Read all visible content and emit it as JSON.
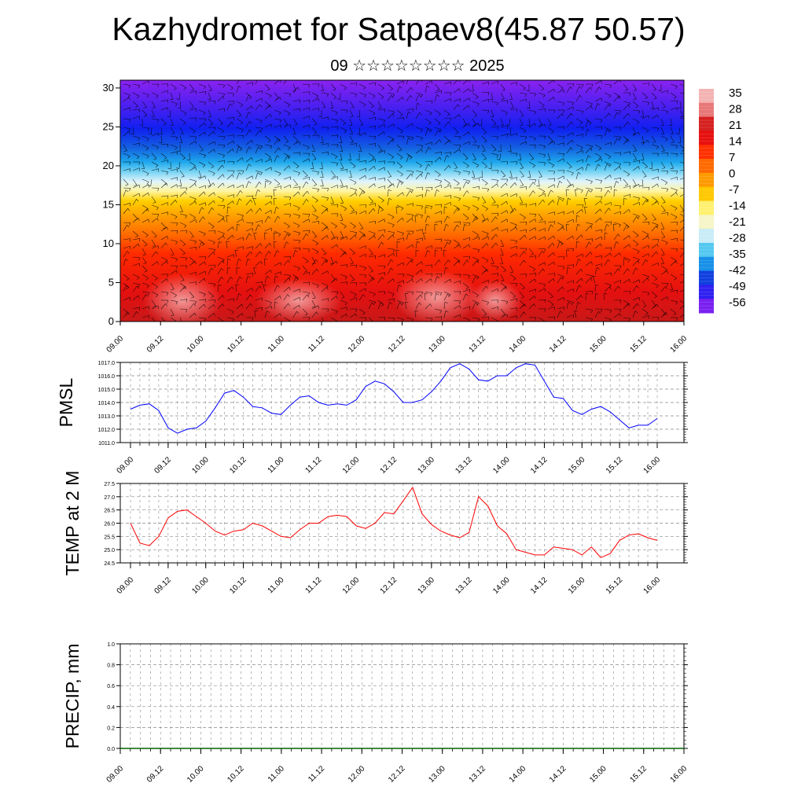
{
  "header": {
    "title": "Kazhydromet for Satpaev8(45.87 50.57)",
    "subtitle": "09 ☆☆☆☆☆☆☆☆ 2025"
  },
  "colors": {
    "pmsl_line": "#0000ff",
    "temp_line": "#ff0000",
    "precip_line": "#006400",
    "grid": "#888888",
    "wind_barb": "#000000"
  },
  "chart_data": [
    {
      "type": "heatmap",
      "name": "temperature-height-section",
      "xticks": [
        "09.00",
        "09.12",
        "10.00",
        "10.12",
        "11.00",
        "11.12",
        "12.00",
        "12.12",
        "13.00",
        "13.12",
        "14.00",
        "14.12",
        "15.00",
        "15.12",
        "16.00"
      ],
      "yticks": [
        0,
        5,
        10,
        15,
        20,
        25,
        30
      ],
      "ylim": [
        0,
        31
      ],
      "colorbar": {
        "labels": [
          35,
          28,
          21,
          14,
          7,
          0,
          -7,
          -14,
          -21,
          -28,
          -35,
          -42,
          -49,
          -56
        ],
        "colors": [
          "#f4b3b3",
          "#e87878",
          "#d62020",
          "#e81010",
          "#ff3000",
          "#ff6a00",
          "#ff9a00",
          "#ffc800",
          "#fff070",
          "#f5f5c8",
          "#c8ecf8",
          "#55c8f0",
          "#1890e8",
          "#1040e0",
          "#3020f0",
          "#7a20f0"
        ]
      },
      "overlay": "wind barbs",
      "grid": false
    },
    {
      "type": "line",
      "name": "pmsl",
      "ylabel": "PMSL",
      "ylim": [
        1011.0,
        1017.0
      ],
      "yticks": [
        "1011.0",
        "1012.0",
        "1013.0",
        "1014.0",
        "1015.0",
        "1016.0",
        "1017.0"
      ],
      "xticks": [
        "09.00",
        "09.12",
        "10.00",
        "10.12",
        "11.00",
        "11.12",
        "12.00",
        "12.12",
        "13.00",
        "13.12",
        "14.00",
        "14.12",
        "15.00",
        "15.12",
        "16.00"
      ],
      "grid": true,
      "values": [
        1013.5,
        1013.8,
        1013.9,
        1013.4,
        1012.1,
        1011.7,
        1012.0,
        1012.1,
        1012.6,
        1013.6,
        1014.7,
        1014.9,
        1014.4,
        1013.7,
        1013.6,
        1013.2,
        1013.1,
        1013.8,
        1014.4,
        1014.5,
        1014.0,
        1013.8,
        1013.9,
        1013.8,
        1014.2,
        1015.2,
        1015.6,
        1015.4,
        1014.8,
        1014.0,
        1014.0,
        1014.2,
        1014.8,
        1015.6,
        1016.6,
        1016.9,
        1016.5,
        1015.7,
        1015.6,
        1016.0,
        1016.0,
        1016.6,
        1016.9,
        1016.8,
        1015.6,
        1014.4,
        1014.3,
        1013.4,
        1013.1,
        1013.5,
        1013.7,
        1013.3,
        1012.7,
        1012.1,
        1012.3,
        1012.3,
        1012.8
      ]
    },
    {
      "type": "line",
      "name": "temp-2m",
      "ylabel": "TEMP at 2 M",
      "ylim": [
        24.5,
        27.5
      ],
      "yticks": [
        "24.5",
        "25.0",
        "25.5",
        "26.0",
        "26.5",
        "27.0",
        "27.5"
      ],
      "xticks": [
        "09.00",
        "09.12",
        "10.00",
        "10.12",
        "11.00",
        "11.12",
        "12.00",
        "12.12",
        "13.00",
        "13.12",
        "14.00",
        "14.12",
        "15.00",
        "15.12",
        "16.00"
      ],
      "grid": true,
      "values": [
        26.0,
        25.25,
        25.15,
        25.5,
        26.2,
        26.45,
        26.5,
        26.25,
        26.0,
        25.7,
        25.55,
        25.7,
        25.75,
        26.0,
        25.9,
        25.7,
        25.5,
        25.45,
        25.75,
        26.0,
        26.0,
        26.25,
        26.3,
        26.25,
        25.9,
        25.8,
        26.0,
        26.4,
        26.35,
        26.85,
        27.35,
        26.35,
        25.95,
        25.7,
        25.55,
        25.45,
        25.65,
        27.0,
        26.65,
        25.9,
        25.6,
        25.0,
        24.9,
        24.8,
        24.8,
        25.1,
        25.05,
        25.0,
        24.8,
        25.1,
        24.7,
        24.85,
        25.35,
        25.55,
        25.6,
        25.45,
        25.35
      ]
    },
    {
      "type": "line",
      "name": "precip",
      "ylabel": "PRECIP, mm",
      "ylim": [
        0.0,
        1.0
      ],
      "yticks": [
        "0.0",
        "0.2",
        "0.4",
        "0.6",
        "0.8",
        "1.0"
      ],
      "xticks": [
        "09.00",
        "09.12",
        "10.00",
        "10.12",
        "11.00",
        "11.12",
        "12.00",
        "12.12",
        "13.00",
        "13.12",
        "14.00",
        "14.12",
        "15.00",
        "15.12",
        "16.00"
      ],
      "grid": true,
      "values": [
        0,
        0,
        0,
        0,
        0,
        0,
        0,
        0,
        0,
        0,
        0,
        0,
        0,
        0,
        0,
        0,
        0,
        0,
        0,
        0,
        0,
        0,
        0,
        0,
        0,
        0,
        0,
        0,
        0,
        0,
        0,
        0,
        0,
        0,
        0,
        0,
        0,
        0,
        0,
        0,
        0,
        0,
        0,
        0,
        0,
        0,
        0,
        0,
        0,
        0,
        0,
        0,
        0,
        0,
        0,
        0,
        0
      ]
    }
  ]
}
